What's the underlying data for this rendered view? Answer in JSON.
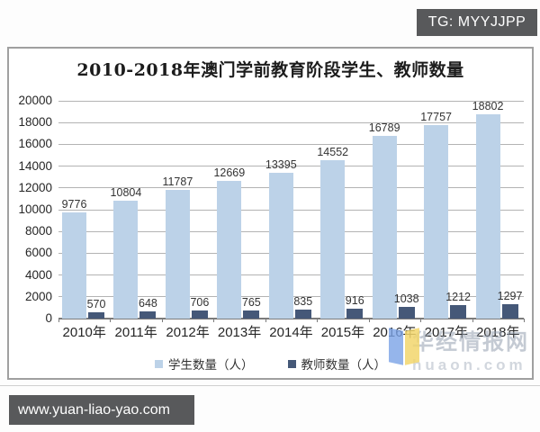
{
  "tg_badge": "TG: MYYJJPP",
  "website_bar": "www.yuan-liao-yao.com",
  "watermark": {
    "name": "华经情报网",
    "domain": "huaon.com"
  },
  "chart_data": {
    "type": "bar",
    "title": "2010-2018年澳门学前教育阶段学生、教师数量",
    "categories": [
      "2010年",
      "2011年",
      "2012年",
      "2013年",
      "2014年",
      "2015年",
      "2016年",
      "2017年",
      "2018年"
    ],
    "series": [
      {
        "name": "学生数量（人）",
        "color": "#BCD2E8",
        "values": [
          9776,
          10804,
          11787,
          12669,
          13395,
          14552,
          16789,
          17757,
          18802
        ]
      },
      {
        "name": "教师数量（人）",
        "color": "#455878",
        "values": [
          570,
          648,
          706,
          765,
          835,
          916,
          1038,
          1212,
          1297
        ]
      }
    ],
    "ylim": [
      0,
      20000
    ],
    "yticks": [
      0,
      2000,
      4000,
      6000,
      8000,
      10000,
      12000,
      14000,
      16000,
      18000,
      20000
    ],
    "xlabel": "",
    "ylabel": "",
    "grid": true,
    "legend_position": "bottom"
  }
}
